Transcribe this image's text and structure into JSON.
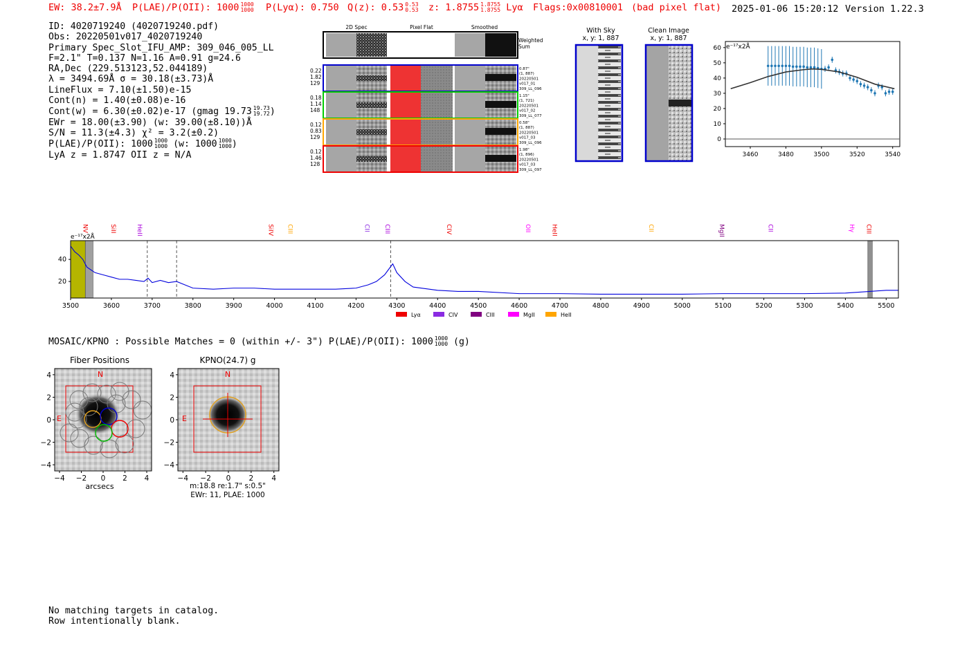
{
  "header": {
    "ew": "EW: 38.2±7.9Å",
    "plae_label": "P(LAE)/P(OII): 1000",
    "plae_hi": "1000",
    "plae_lo": "1000",
    "plya": "P(Lyα): 0.750",
    "qz_label": "Q(z): 0.53",
    "qz_hi": "0.53",
    "qz_lo": "0.53",
    "z_label": "z: 1.8755",
    "z_hi": "1.8755",
    "z_lo": "1.8755",
    "z_line": "Lyα",
    "flags": "Flags:0x00810001",
    "flag_note": "(bad pixel flat)",
    "datetime": "2025-01-06 15:20:12",
    "version": "Version 1.22.3"
  },
  "info": {
    "id": "ID: 4020719240 (4020719240.pdf)",
    "obs": "Obs: 20220501v017_4020719240",
    "primary": "Primary Spec_Slot_IFU_AMP: 309_046_005_LL",
    "fit": "F=2.1\"  T=0.137  N=1.16  A=0.91  g=24.6",
    "radec": "RA,Dec (229.513123,52.044189)",
    "lambda": "λ = 3494.69Å  σ = 30.18(±3.73)Å",
    "lineflux": "LineFlux = 7.10(±1.50)e-15",
    "contn": "Cont(n) = 1.40(±0.08)e-16",
    "contw": "Cont(w) = 6.30(±0.02)e-17 (gmag 19.73",
    "contw_hi": "19.73",
    "contw_lo": "19.72",
    "contw_end": ")",
    "ewr": "EWr = 18.00(±3.90) (w: 39.00(±8.10))Å",
    "sn": "S/N = 11.3(±4.3)  χ² = 3.2(±0.2)",
    "plae": "P(LAE)/P(OII): 1000",
    "plae_hi": "1000",
    "plae_lo": "1000",
    "plae_w": "(w: 1000",
    "plae_w_hi": "1000",
    "plae_w_lo": "1000",
    "plae_w_end": ")",
    "z": "LyA z = 1.8747  OII z = N/A"
  },
  "cutouts": {
    "col_2d": "2D Spec",
    "col_flat": "Pixel Flat",
    "col_smooth": "Smoothed",
    "weighted": [
      "Weighted",
      "Sum"
    ],
    "rows": [
      {
        "color": "#0000cc",
        "left": [
          "0.22",
          "1.82",
          "129"
        ],
        "right": [
          "0.87\"",
          "(1, 887)",
          "20220501",
          "v017_01",
          "309_LL_096"
        ]
      },
      {
        "color": "#00cc00",
        "left": [
          "0.18",
          "1.14",
          "148"
        ],
        "right": [
          "1.15\"",
          "(1, 721)",
          "20220501",
          "v017_02",
          "309_LL_077"
        ]
      },
      {
        "color": "#ffa500",
        "left": [
          "0.12",
          "0.83",
          "129"
        ],
        "right": [
          "0.58\"",
          "(1, 887)",
          "20220501",
          "v017_03",
          "309_LL_096"
        ]
      },
      {
        "color": "#ee0000",
        "left": [
          "0.12",
          "1.46",
          "128"
        ],
        "right": [
          "1.98\"",
          "(1, 896)",
          "20220501",
          "v017_03",
          "309_LL_097"
        ]
      }
    ]
  },
  "sky": {
    "with_sky_title": "With Sky",
    "with_sky_xy": "x, y: 1, 887",
    "clean_title": "Clean Image",
    "clean_xy": "x, y: 1, 887"
  },
  "chart_data": [
    {
      "type": "scatter",
      "title": "",
      "unit_label": "e⁻¹⁷x2Å",
      "xlim": [
        3446,
        3544
      ],
      "ylim": [
        -5,
        64
      ],
      "xticks": [
        "3460",
        "3480",
        "3500",
        "3520",
        "3540"
      ],
      "yticks": [
        "0",
        "10",
        "20",
        "30",
        "40",
        "50",
        "60"
      ],
      "x": [
        3470,
        3472,
        3474,
        3476,
        3478,
        3480,
        3482,
        3484,
        3486,
        3488,
        3490,
        3492,
        3494,
        3496,
        3498,
        3500,
        3502,
        3504,
        3506,
        3508,
        3510,
        3512,
        3514,
        3516,
        3518,
        3520,
        3522,
        3524,
        3526,
        3528,
        3530,
        3532,
        3534,
        3536,
        3538,
        3540
      ],
      "y": [
        48,
        48,
        48,
        48,
        48,
        48,
        48,
        47.5,
        47.5,
        47.5,
        47.5,
        47,
        47,
        47,
        46.5,
        46,
        46,
        47,
        52,
        45,
        44,
        43,
        43,
        40,
        39,
        38,
        36,
        35,
        34,
        32,
        30,
        35,
        34,
        30,
        31,
        31
      ],
      "yerr": [
        13,
        13,
        13,
        13,
        13,
        13,
        13,
        13,
        13,
        13,
        13,
        13,
        13,
        13,
        13,
        13,
        2,
        2,
        2,
        2,
        2,
        2,
        2,
        2,
        2,
        2,
        2,
        2,
        2,
        2,
        2,
        2,
        2,
        2,
        2,
        2
      ],
      "fit": {
        "x": [
          3449,
          3460,
          3470,
          3480,
          3490,
          3495,
          3500,
          3510,
          3520,
          3530,
          3541
        ],
        "y": [
          33,
          37,
          41,
          44,
          45.5,
          46,
          45.7,
          44,
          40.5,
          36,
          33
        ]
      }
    },
    {
      "type": "line",
      "title": "",
      "unit_label": "e⁻¹⁷x2Å",
      "xlim": [
        3500,
        5530
      ],
      "ylim": [
        5,
        57
      ],
      "xticks": [
        "3500",
        "3600",
        "3700",
        "3800",
        "3900",
        "4000",
        "4100",
        "4200",
        "4300",
        "4400",
        "4500",
        "4600",
        "4700",
        "4800",
        "4900",
        "5000",
        "5100",
        "5200",
        "5300",
        "5400",
        "5500"
      ],
      "yticks": [
        "20",
        "40"
      ],
      "spectrum": {
        "x": [
          3500,
          3510,
          3520,
          3530,
          3540,
          3560,
          3580,
          3600,
          3620,
          3640,
          3660,
          3680,
          3690,
          3700,
          3720,
          3740,
          3760,
          3780,
          3800,
          3850,
          3900,
          3950,
          4000,
          4050,
          4100,
          4150,
          4200,
          4230,
          4250,
          4270,
          4280,
          4290,
          4300,
          4320,
          4340,
          4400,
          4450,
          4500,
          4600,
          4700,
          4800,
          4900,
          5000,
          5100,
          5200,
          5300,
          5400,
          5460,
          5500,
          5530
        ],
        "y": [
          52,
          47,
          44,
          40,
          33,
          28,
          26,
          24,
          22,
          22,
          21,
          20,
          23,
          19,
          21,
          19,
          20,
          17,
          14,
          13,
          14,
          14,
          13,
          13,
          13,
          13,
          14,
          17,
          20,
          26,
          31,
          36,
          28,
          20,
          15,
          12,
          11,
          11,
          9,
          9,
          8.5,
          8.5,
          8.5,
          9,
          9,
          9,
          9.5,
          11,
          12,
          12
        ]
      },
      "masked_x": [
        [
          3500,
          3536
        ],
        [
          3536,
          3555
        ],
        [
          5455,
          5466
        ]
      ],
      "vlines_x": [
        3688,
        3760,
        4285
      ],
      "lines": [
        {
          "name": "NV",
          "x": 3565,
          "color": "#ee0000"
        },
        {
          "name": "SiII",
          "x": 3634,
          "color": "#ee0000"
        },
        {
          "name": "HeII",
          "x": 3699,
          "color": "#aa00dd"
        },
        {
          "name": "SiIV",
          "x": 4020,
          "color": "#ee0000"
        },
        {
          "name": "CIII",
          "x": 4068,
          "color": "#ffa500"
        },
        {
          "name": "CII",
          "x": 4256,
          "color": "#8a2be2"
        },
        {
          "name": "CIII",
          "x": 4306,
          "color": "#aa00dd"
        },
        {
          "name": "CIV",
          "x": 4457,
          "color": "#ee0000"
        },
        {
          "name": "OII",
          "x": 4651,
          "color": "#ff00ff"
        },
        {
          "name": "HeII",
          "x": 4716,
          "color": "#ee0000"
        },
        {
          "name": "CII",
          "x": 4953,
          "color": "#ffa500"
        },
        {
          "name": "MgII",
          "x": 5126,
          "color": "#800080"
        },
        {
          "name": "CII",
          "x": 5246,
          "color": "#aa00dd"
        },
        {
          "name": "Hγ",
          "x": 5445,
          "color": "#ff00ff"
        },
        {
          "name": "CIII",
          "x": 5487,
          "color": "#ee0000"
        }
      ],
      "legend": [
        {
          "name": "Lyα",
          "color": "#ee0000"
        },
        {
          "name": "CIV",
          "color": "#8a2be2"
        },
        {
          "name": "CIII",
          "color": "#800080"
        },
        {
          "name": "MgII",
          "color": "#ff00ff"
        },
        {
          "name": "HeII",
          "color": "#ffa500"
        }
      ]
    }
  ],
  "catalog": {
    "label": "MOSAIC/KPNO : Possible Matches = 0 (within +/- 3\")  P(LAE)/P(OII): 1000",
    "frac_hi": "1000",
    "frac_lo": "1000",
    "band": "(g)"
  },
  "fiber_panel": {
    "title": "Fiber Positions",
    "xlabel": "arcsecs",
    "north": "N",
    "east": "E",
    "xticks": [
      "−4",
      "−2",
      "0",
      "2",
      "4"
    ],
    "yticks": [
      "4",
      "2",
      "0",
      "−2",
      "−4"
    ]
  },
  "kpno_panel": {
    "title": "KPNO(24.7) g",
    "north": "N",
    "east": "E",
    "xticks": [
      "−4",
      "−2",
      "0",
      "2",
      "4"
    ],
    "yticks": [
      "4",
      "2",
      "0",
      "−2",
      "−4"
    ],
    "caption1": "m:18.8  re:1.7\"  s:0.5\"",
    "caption2": "EWr: 11, PLAE: 1000"
  },
  "footer": {
    "line1": "No matching targets in catalog.",
    "line2": "Row intentionally blank."
  }
}
